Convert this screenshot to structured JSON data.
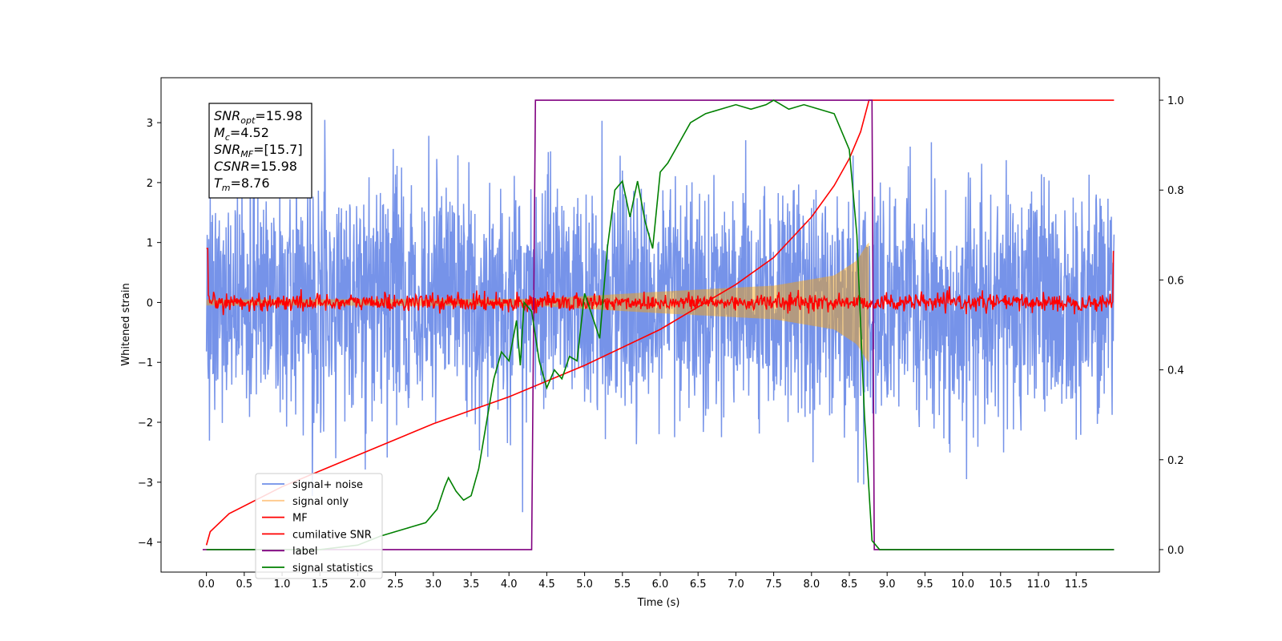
{
  "chart_data": {
    "type": "line",
    "xlabel": "Time (s)",
    "ylabel": "Whitened strain",
    "xlim": [
      -0.6,
      12.6
    ],
    "ylim_left": [
      -4.5,
      3.75
    ],
    "ylim_right": [
      -0.05,
      1.05
    ],
    "x_ticks": [
      "0.0",
      "0.5",
      "1.0",
      "1.5",
      "2.0",
      "2.5",
      "3.0",
      "3.5",
      "4.0",
      "4.5",
      "5.0",
      "5.5",
      "6.0",
      "6.5",
      "7.0",
      "7.5",
      "8.0",
      "8.5",
      "9.0",
      "9.5",
      "10.0",
      "10.5",
      "11.0",
      "11.5"
    ],
    "y_ticks_left": [
      "3",
      "2",
      "1",
      "0",
      "−1",
      "−2",
      "−3",
      "−4"
    ],
    "y_ticks_right": [
      "1.0",
      "0.8",
      "0.6",
      "0.4",
      "0.2",
      "0.0"
    ],
    "annotation": [
      {
        "base": "SNR",
        "sub": "opt",
        "value": "=15.98"
      },
      {
        "base": "M",
        "sub": "c",
        "value": "=4.52"
      },
      {
        "base": "SNR",
        "sub": "MF",
        "value": "=[15.7]"
      },
      {
        "base": "CSNR",
        "sub": "",
        "value": "=15.98"
      },
      {
        "base": "T",
        "sub": "m",
        "value": "=8.76"
      }
    ],
    "legend_position": "lower-left",
    "series": [
      {
        "name": "signal+ noise",
        "color": "#4169e1",
        "axis": "left",
        "noise_amplitude": 1.2,
        "range": [
          0.0,
          12.0
        ]
      },
      {
        "name": "signal only",
        "color": "#ffa500",
        "axis": "left",
        "envelope_at_x": [
          [
            0.0,
            0.05
          ],
          [
            4.4,
            0.06
          ],
          [
            6.0,
            0.18
          ],
          [
            7.5,
            0.28
          ],
          [
            8.3,
            0.45
          ],
          [
            8.6,
            0.7
          ],
          [
            8.75,
            1.0
          ]
        ]
      },
      {
        "name": "MF",
        "color": "#ff0000",
        "axis": "left",
        "noise_amplitude": 0.07,
        "range": [
          0.0,
          12.0
        ]
      },
      {
        "name": "cumilative SNR",
        "color": "#ff0000",
        "axis": "right",
        "x": [
          0.0,
          0.05,
          0.3,
          1.0,
          2.0,
          3.0,
          4.0,
          5.0,
          6.0,
          6.5,
          7.0,
          7.5,
          8.0,
          8.3,
          8.5,
          8.65,
          8.76,
          9.5,
          12.0
        ],
        "y": [
          0.01,
          0.04,
          0.08,
          0.14,
          0.21,
          0.28,
          0.34,
          0.41,
          0.49,
          0.54,
          0.59,
          0.65,
          0.74,
          0.81,
          0.87,
          0.93,
          1.0,
          1.0,
          1.0
        ]
      },
      {
        "name": "label",
        "color": "#800080",
        "axis": "right",
        "x": [
          -0.05,
          4.3,
          4.35,
          8.8,
          8.83,
          12.0
        ],
        "y": [
          0.0,
          0.0,
          1.0,
          1.0,
          0.0,
          0.0
        ]
      },
      {
        "name": "signal statistics",
        "color": "#008000",
        "axis": "right",
        "x": [
          0.0,
          0.5,
          1.0,
          1.5,
          2.0,
          2.3,
          2.5,
          2.7,
          2.9,
          3.05,
          3.15,
          3.2,
          3.3,
          3.4,
          3.5,
          3.6,
          3.7,
          3.8,
          3.9,
          4.0,
          4.1,
          4.15,
          4.2,
          4.3,
          4.4,
          4.5,
          4.6,
          4.7,
          4.8,
          4.9,
          5.0,
          5.1,
          5.2,
          5.3,
          5.4,
          5.5,
          5.6,
          5.7,
          5.8,
          5.9,
          6.0,
          6.1,
          6.2,
          6.3,
          6.4,
          6.5,
          6.6,
          6.8,
          7.0,
          7.2,
          7.4,
          7.5,
          7.7,
          7.9,
          8.1,
          8.3,
          8.5,
          8.6,
          8.7,
          8.8,
          8.9,
          9.0,
          12.0
        ],
        "y": [
          0.0,
          0.0,
          0.0,
          0.0,
          0.01,
          0.03,
          0.04,
          0.05,
          0.06,
          0.09,
          0.14,
          0.16,
          0.13,
          0.11,
          0.12,
          0.18,
          0.28,
          0.38,
          0.44,
          0.42,
          0.51,
          0.41,
          0.55,
          0.53,
          0.42,
          0.36,
          0.4,
          0.38,
          0.43,
          0.42,
          0.57,
          0.52,
          0.47,
          0.67,
          0.8,
          0.82,
          0.74,
          0.82,
          0.73,
          0.67,
          0.84,
          0.86,
          0.89,
          0.92,
          0.95,
          0.96,
          0.97,
          0.98,
          0.99,
          0.98,
          0.99,
          1.0,
          0.98,
          0.99,
          0.98,
          0.97,
          0.89,
          0.7,
          0.3,
          0.02,
          0.0,
          0.0,
          0.0
        ]
      }
    ]
  }
}
